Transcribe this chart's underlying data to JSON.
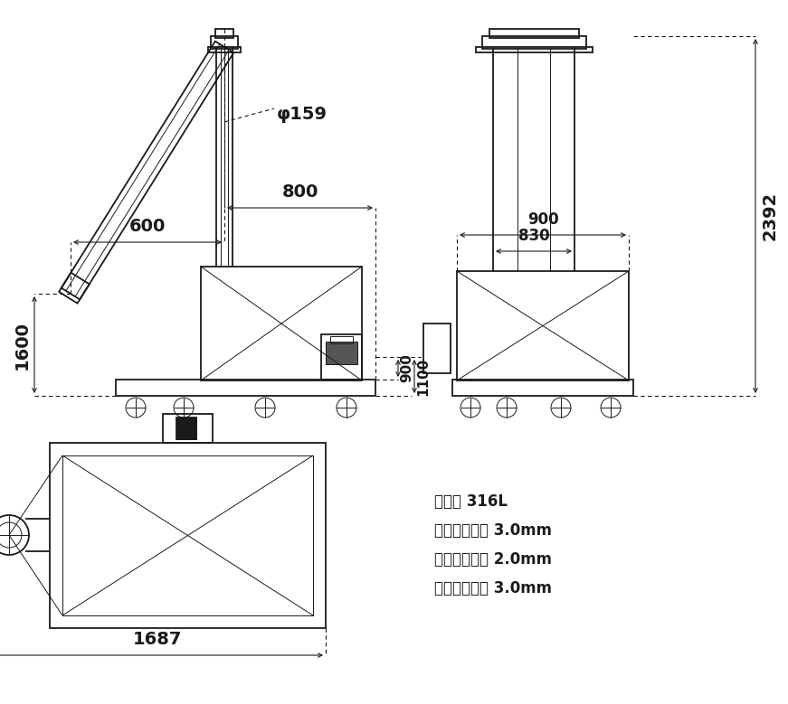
{
  "bg_color": "#ffffff",
  "lc": "#1a1a1a",
  "lw_main": 1.3,
  "lw_thin": 0.7,
  "lw_dim": 0.8,
  "specs": [
    "材质： 316L",
    "贛旋管壁厚： 3.0mm",
    "储料仓板厚： 2.0mm",
    "贛旋叶片厚： 3.0mm"
  ],
  "ann": {
    "phi159": "φ159",
    "d600": "600",
    "d800": "800",
    "d1600": "1600",
    "d900r": "900",
    "d830": "830",
    "d2392": "2392",
    "d900m": "900",
    "d1100": "1100",
    "d1687": "1687"
  }
}
